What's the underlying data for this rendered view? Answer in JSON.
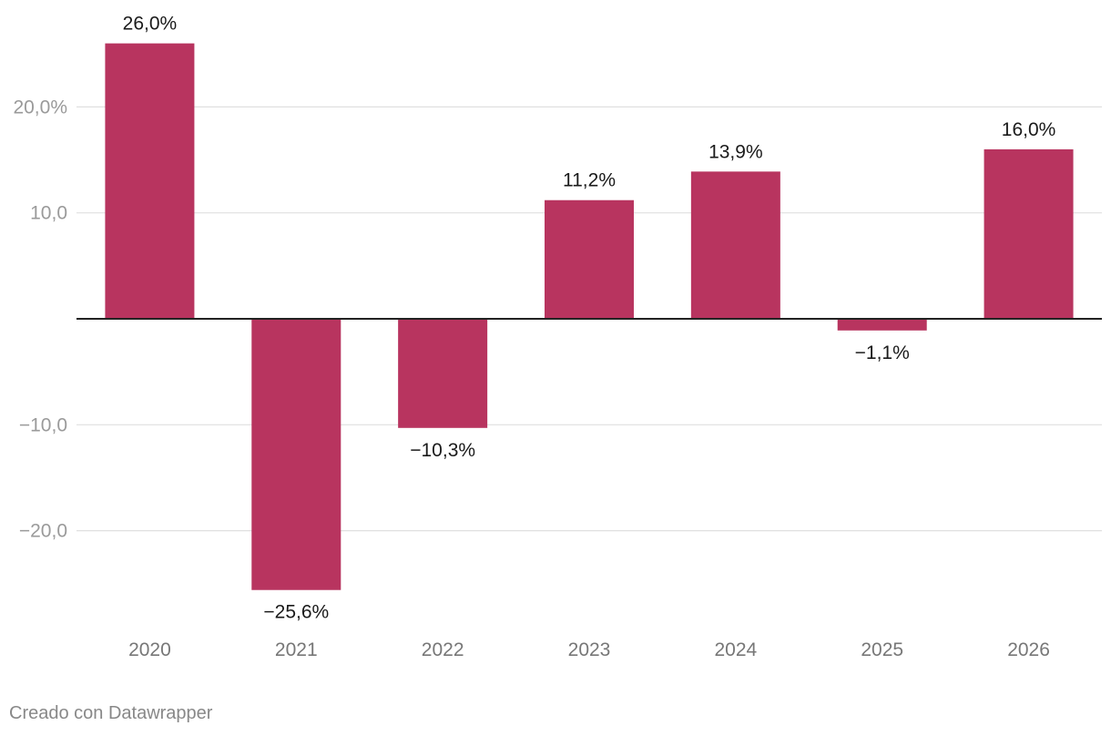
{
  "chart_data": {
    "type": "bar",
    "categories": [
      "2020",
      "2021",
      "2022",
      "2023",
      "2024",
      "2025",
      "2026"
    ],
    "values": [
      26.0,
      -25.6,
      -10.3,
      11.2,
      13.9,
      -1.1,
      16.0
    ],
    "data_labels": [
      "26,0%",
      "−25,6%",
      "−10,3%",
      "11,2%",
      "13,9%",
      "−1,1%",
      "16,0%"
    ],
    "y_ticks": [
      20,
      10,
      -10,
      -20
    ],
    "y_tick_labels": [
      "20,0%",
      "10,0",
      "−10,0",
      "−20,0"
    ],
    "ylim": [
      -27,
      27.5
    ],
    "grid": true,
    "bar_color": "#b8345f",
    "title": "",
    "xlabel": "",
    "ylabel": ""
  },
  "footer": {
    "credit": "Creado con Datawrapper"
  }
}
